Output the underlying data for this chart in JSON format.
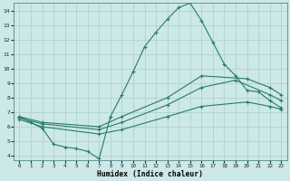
{
  "xlabel": "Humidex (Indice chaleur)",
  "background_color": "#cce8e8",
  "grid_color": "#aacece",
  "line_color": "#2a7a6a",
  "xlim": [
    -0.5,
    23.5
  ],
  "ylim": [
    3.7,
    14.5
  ],
  "xticks": [
    0,
    1,
    2,
    3,
    4,
    5,
    6,
    7,
    8,
    9,
    10,
    11,
    12,
    13,
    14,
    15,
    16,
    17,
    18,
    19,
    20,
    21,
    22,
    23
  ],
  "yticks": [
    4,
    5,
    6,
    7,
    8,
    9,
    10,
    11,
    12,
    13,
    14
  ],
  "line1_x": [
    0,
    1,
    2,
    3,
    4,
    5,
    6,
    7,
    8,
    9,
    10,
    11,
    12,
    13,
    14,
    15,
    16,
    17,
    18,
    19,
    20,
    21,
    22,
    23
  ],
  "line1_y": [
    6.7,
    6.3,
    5.9,
    4.8,
    4.6,
    4.5,
    4.3,
    3.8,
    6.7,
    8.2,
    9.8,
    11.5,
    12.5,
    13.4,
    14.2,
    14.5,
    13.3,
    11.8,
    10.3,
    9.5,
    8.5,
    8.4,
    7.8,
    7.3
  ],
  "line2_x": [
    0,
    2,
    7,
    9,
    13,
    16,
    20,
    22,
    23
  ],
  "line2_y": [
    6.7,
    6.3,
    6.0,
    6.7,
    8.0,
    9.5,
    9.3,
    8.7,
    8.2
  ],
  "line3_x": [
    0,
    2,
    7,
    9,
    13,
    16,
    19,
    22,
    23
  ],
  "line3_y": [
    6.6,
    6.2,
    5.8,
    6.3,
    7.5,
    8.7,
    9.2,
    8.2,
    7.8
  ],
  "line4_x": [
    0,
    2,
    7,
    9,
    13,
    16,
    20,
    22,
    23
  ],
  "line4_y": [
    6.5,
    6.0,
    5.5,
    5.8,
    6.7,
    7.4,
    7.7,
    7.4,
    7.2
  ]
}
